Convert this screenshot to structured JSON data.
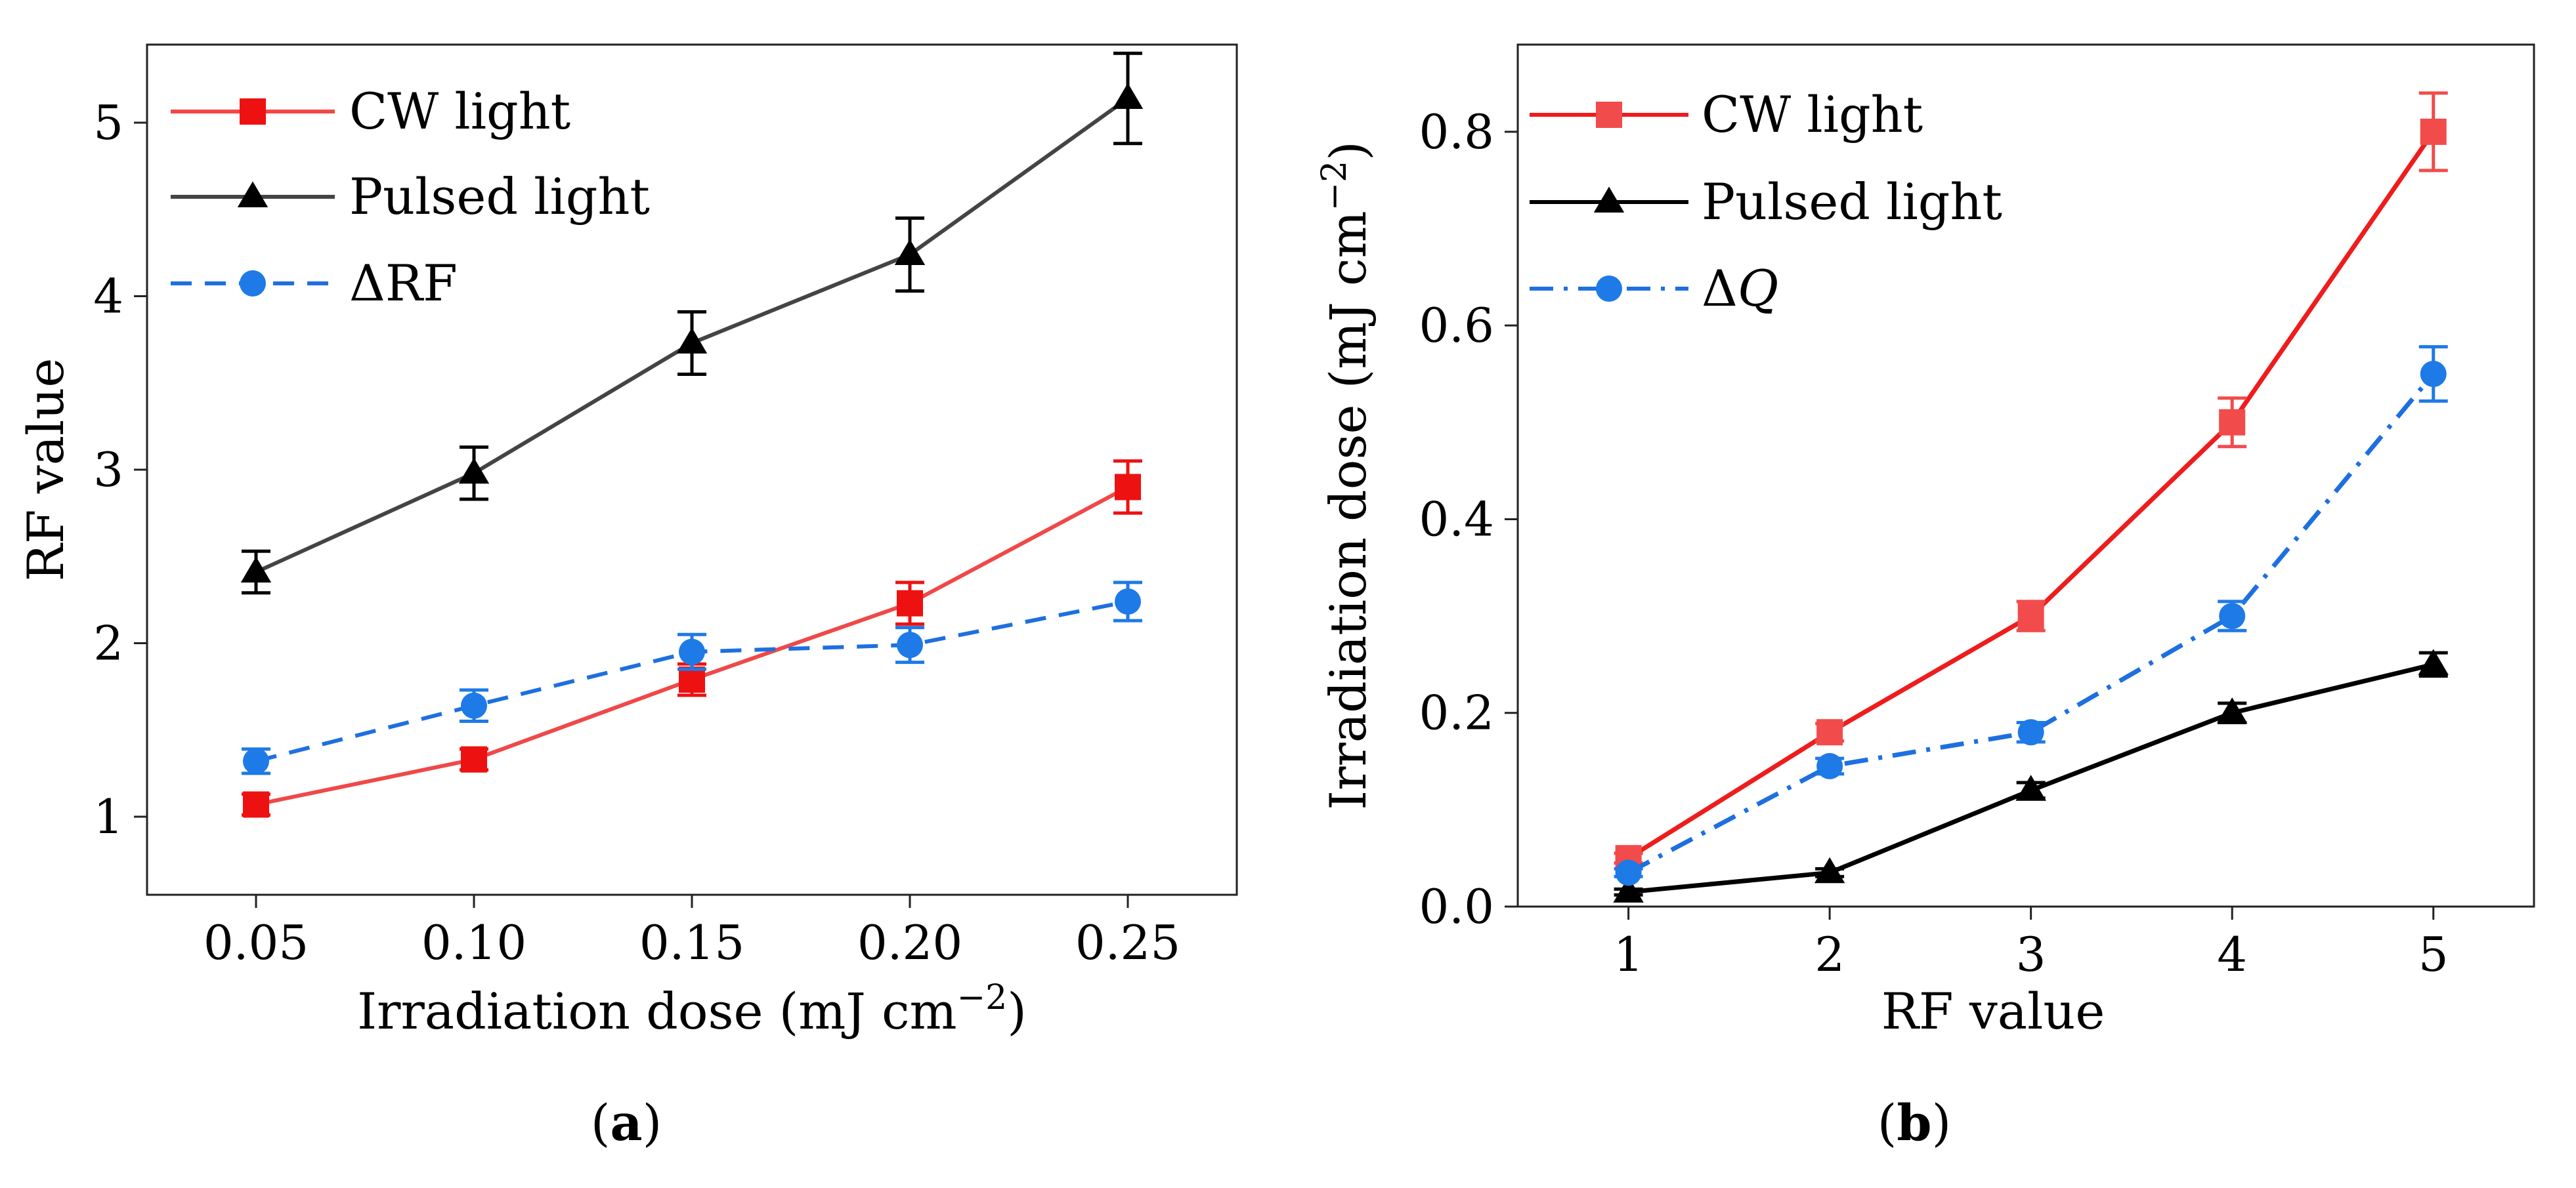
{
  "chart_data": [
    {
      "panel_label": "a",
      "type": "line",
      "xlabel": "Irradiation dose (mJ cm",
      "xlabel_sup": "−2",
      "xlabel_close": ")",
      "ylabel": "RF value",
      "xlim": [
        0.025,
        0.275
      ],
      "ylim": [
        0.55,
        5.45
      ],
      "xticks": [
        0.05,
        0.1,
        0.15,
        0.2,
        0.25
      ],
      "xtick_labels": [
        "0.05",
        "0.10",
        "0.15",
        "0.20",
        "0.25"
      ],
      "yticks": [
        1,
        2,
        3,
        4,
        5
      ],
      "ytick_labels": [
        "1",
        "2",
        "3",
        "4",
        "5"
      ],
      "legend_position": "top-left",
      "x": [
        0.05,
        0.1,
        0.15,
        0.2,
        0.25
      ],
      "series": [
        {
          "name": "CW light",
          "label": "CW light",
          "color": "#f04848",
          "marker_color": "#ee1111",
          "marker": "square",
          "dash": "solid",
          "values": [
            1.07,
            1.33,
            1.79,
            2.23,
            2.9
          ],
          "errors": [
            0.06,
            0.06,
            0.09,
            0.12,
            0.15
          ]
        },
        {
          "name": "Pulsed light",
          "label": "Pulsed light",
          "color": "#444444",
          "marker_color": "#000000",
          "marker": "triangle",
          "dash": "solid",
          "values": [
            2.41,
            2.98,
            3.73,
            4.24,
            5.14
          ],
          "errors": [
            0.12,
            0.15,
            0.18,
            0.21,
            0.26
          ]
        },
        {
          "name": "ΔRF",
          "label": "ΔRF",
          "color": "#1e6fe0",
          "marker_color": "#1e7ae6",
          "marker": "circle",
          "dash": "dashed",
          "values": [
            1.32,
            1.64,
            1.95,
            1.99,
            2.24
          ],
          "errors": [
            0.07,
            0.09,
            0.1,
            0.1,
            0.11
          ]
        }
      ]
    },
    {
      "panel_label": "b",
      "type": "line",
      "xlabel": "RF value",
      "ylabel": "Irradiation dose (mJ cm",
      "ylabel_sup": "−2",
      "ylabel_close": ")",
      "xlim": [
        0.45,
        5.5
      ],
      "ylim": [
        0.0,
        0.89
      ],
      "xticks": [
        1,
        2,
        3,
        4,
        5
      ],
      "xtick_labels": [
        "1",
        "2",
        "3",
        "4",
        "5"
      ],
      "yticks": [
        0.0,
        0.2,
        0.4,
        0.6,
        0.8
      ],
      "ytick_labels": [
        "0.0",
        "0.2",
        "0.4",
        "0.6",
        "0.8"
      ],
      "legend_position": "top-left",
      "x": [
        1,
        2,
        3,
        4,
        5
      ],
      "series": [
        {
          "name": "CW light",
          "label": "CW light",
          "color": "#ee1c1c",
          "marker_color": "#f24b4b",
          "marker": "square",
          "dash": "solid",
          "values": [
            0.05,
            0.18,
            0.3,
            0.5,
            0.8
          ],
          "errors": [
            0.005,
            0.009,
            0.015,
            0.025,
            0.04
          ]
        },
        {
          "name": "Pulsed light",
          "label": "Pulsed light",
          "color": "#000000",
          "marker_color": "#000000",
          "marker": "triangle",
          "dash": "solid",
          "values": [
            0.015,
            0.035,
            0.12,
            0.2,
            0.25
          ],
          "errors": [
            0.003,
            0.004,
            0.008,
            0.01,
            0.012
          ]
        },
        {
          "name": "ΔQ",
          "label": "Δ",
          "label_italic": "Q",
          "color": "#1e6fe0",
          "marker_color": "#1e7ae6",
          "marker": "circle",
          "dash": "dashdot",
          "values": [
            0.035,
            0.145,
            0.18,
            0.3,
            0.55
          ],
          "errors": [
            0.004,
            0.008,
            0.01,
            0.015,
            0.028
          ]
        }
      ]
    }
  ]
}
